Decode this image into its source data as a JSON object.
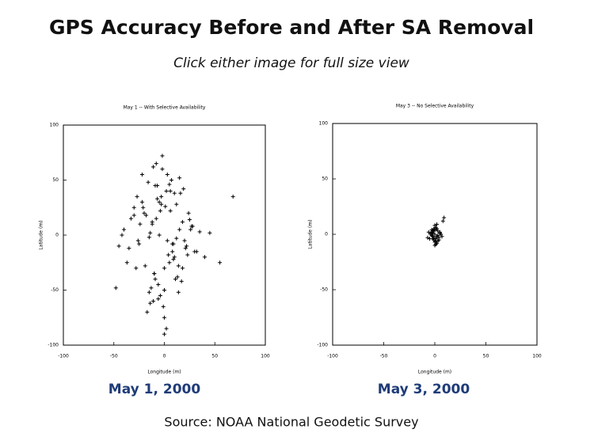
{
  "header": {
    "title": "GPS Accuracy Before and After SA Removal",
    "subtitle": "Click either image for full size view"
  },
  "chart_data": [
    {
      "type": "scatter",
      "title": "May 1 -- With Selective Availability",
      "x_label": "Longitude (m)",
      "y_label": "Latitude (m)",
      "xlim": [
        -100,
        100
      ],
      "ylim": [
        -100,
        100
      ],
      "xticks": [
        -100,
        -50,
        0,
        50,
        100
      ],
      "yticks": [
        -100,
        -50,
        0,
        50,
        100
      ],
      "color": "#000000",
      "x": [
        -5,
        3,
        -12,
        8,
        15,
        -20,
        0,
        -8,
        22,
        -30,
        10,
        -3,
        5,
        -15,
        18,
        -25,
        2,
        -10,
        12,
        -6,
        28,
        -35,
        7,
        -18,
        0,
        14,
        -22,
        4,
        -9,
        20,
        -2,
        11,
        -14,
        6,
        -28,
        16,
        -4,
        25,
        -11,
        1,
        -40,
        9,
        -16,
        30,
        -7,
        13,
        -1,
        -24,
        19,
        -13,
        35,
        -45,
        3,
        -19,
        24,
        -8,
        17,
        -33,
        8,
        -5,
        40,
        -27,
        12,
        -2,
        -37,
        21,
        5,
        -15,
        27,
        -10,
        45,
        -21,
        0,
        -30,
        15,
        -6,
        55,
        -48,
        10,
        -12,
        32,
        -3,
        -17,
        6,
        26,
        -26,
        68,
        -42,
        2,
        -9,
        -14,
        18,
        -4,
        -22,
        23,
        0,
        -11,
        14,
        -7,
        9
      ],
      "y": [
        0,
        -5,
        10,
        -15,
        5,
        20,
        -30,
        15,
        -10,
        25,
        -20,
        35,
        -25,
        -2,
        12,
        -8,
        40,
        -35,
        28,
        -45,
        8,
        -12,
        50,
        18,
        -50,
        -28,
        30,
        -18,
        45,
        -5,
        60,
        -40,
        2,
        22,
        -30,
        38,
        -55,
        14,
        -60,
        26,
        5,
        -22,
        48,
        -15,
        33,
        -38,
        -65,
        10,
        42,
        -48,
        3,
        -10,
        55,
        -28,
        20,
        65,
        -42,
        15,
        -8,
        30,
        -20,
        35,
        -3,
        72,
        -25,
        -12,
        46,
        -52,
        8,
        -35,
        2,
        25,
        -75,
        18,
        52,
        -58,
        -25,
        -48,
        38,
        12,
        -15,
        28,
        -70,
        40,
        5,
        -5,
        35,
        0,
        -85,
        -40,
        -62,
        -30,
        22,
        55,
        -18,
        -90,
        62,
        -52,
        45,
        -8
      ],
      "caption": "May 1, 2000"
    },
    {
      "type": "scatter",
      "title": "May 3 -- No Selective Availability",
      "x_label": "Longitude (m)",
      "y_label": "Latitude (m)",
      "xlim": [
        -100,
        100
      ],
      "ylim": [
        -100,
        100
      ],
      "xticks": [
        -100,
        -50,
        0,
        50,
        100
      ],
      "yticks": [
        -100,
        -50,
        0,
        50,
        100
      ],
      "color": "#000000",
      "x": [
        0,
        2,
        -2,
        1,
        -1,
        3,
        -3,
        4,
        -4,
        0,
        1,
        -1,
        2,
        -2,
        5,
        -5,
        0,
        3,
        -3,
        6,
        -6,
        1,
        -1,
        2,
        7,
        -2,
        0,
        4,
        -4,
        8,
        1,
        -1,
        3,
        -3,
        0,
        2,
        -2,
        5,
        9,
        -7
      ],
      "y": [
        0,
        -2,
        1,
        -4,
        3,
        -1,
        2,
        -5,
        0,
        4,
        -6,
        -3,
        5,
        -2,
        1,
        -4,
        -7,
        3,
        -1,
        0,
        2,
        6,
        -5,
        -8,
        -2,
        3,
        8,
        -3,
        1,
        12,
        -9,
        5,
        -6,
        4,
        -10,
        9,
        -4,
        2,
        15,
        -3
      ],
      "caption": "May 3, 2000"
    }
  ],
  "source": "Source: NOAA National Geodetic Survey"
}
